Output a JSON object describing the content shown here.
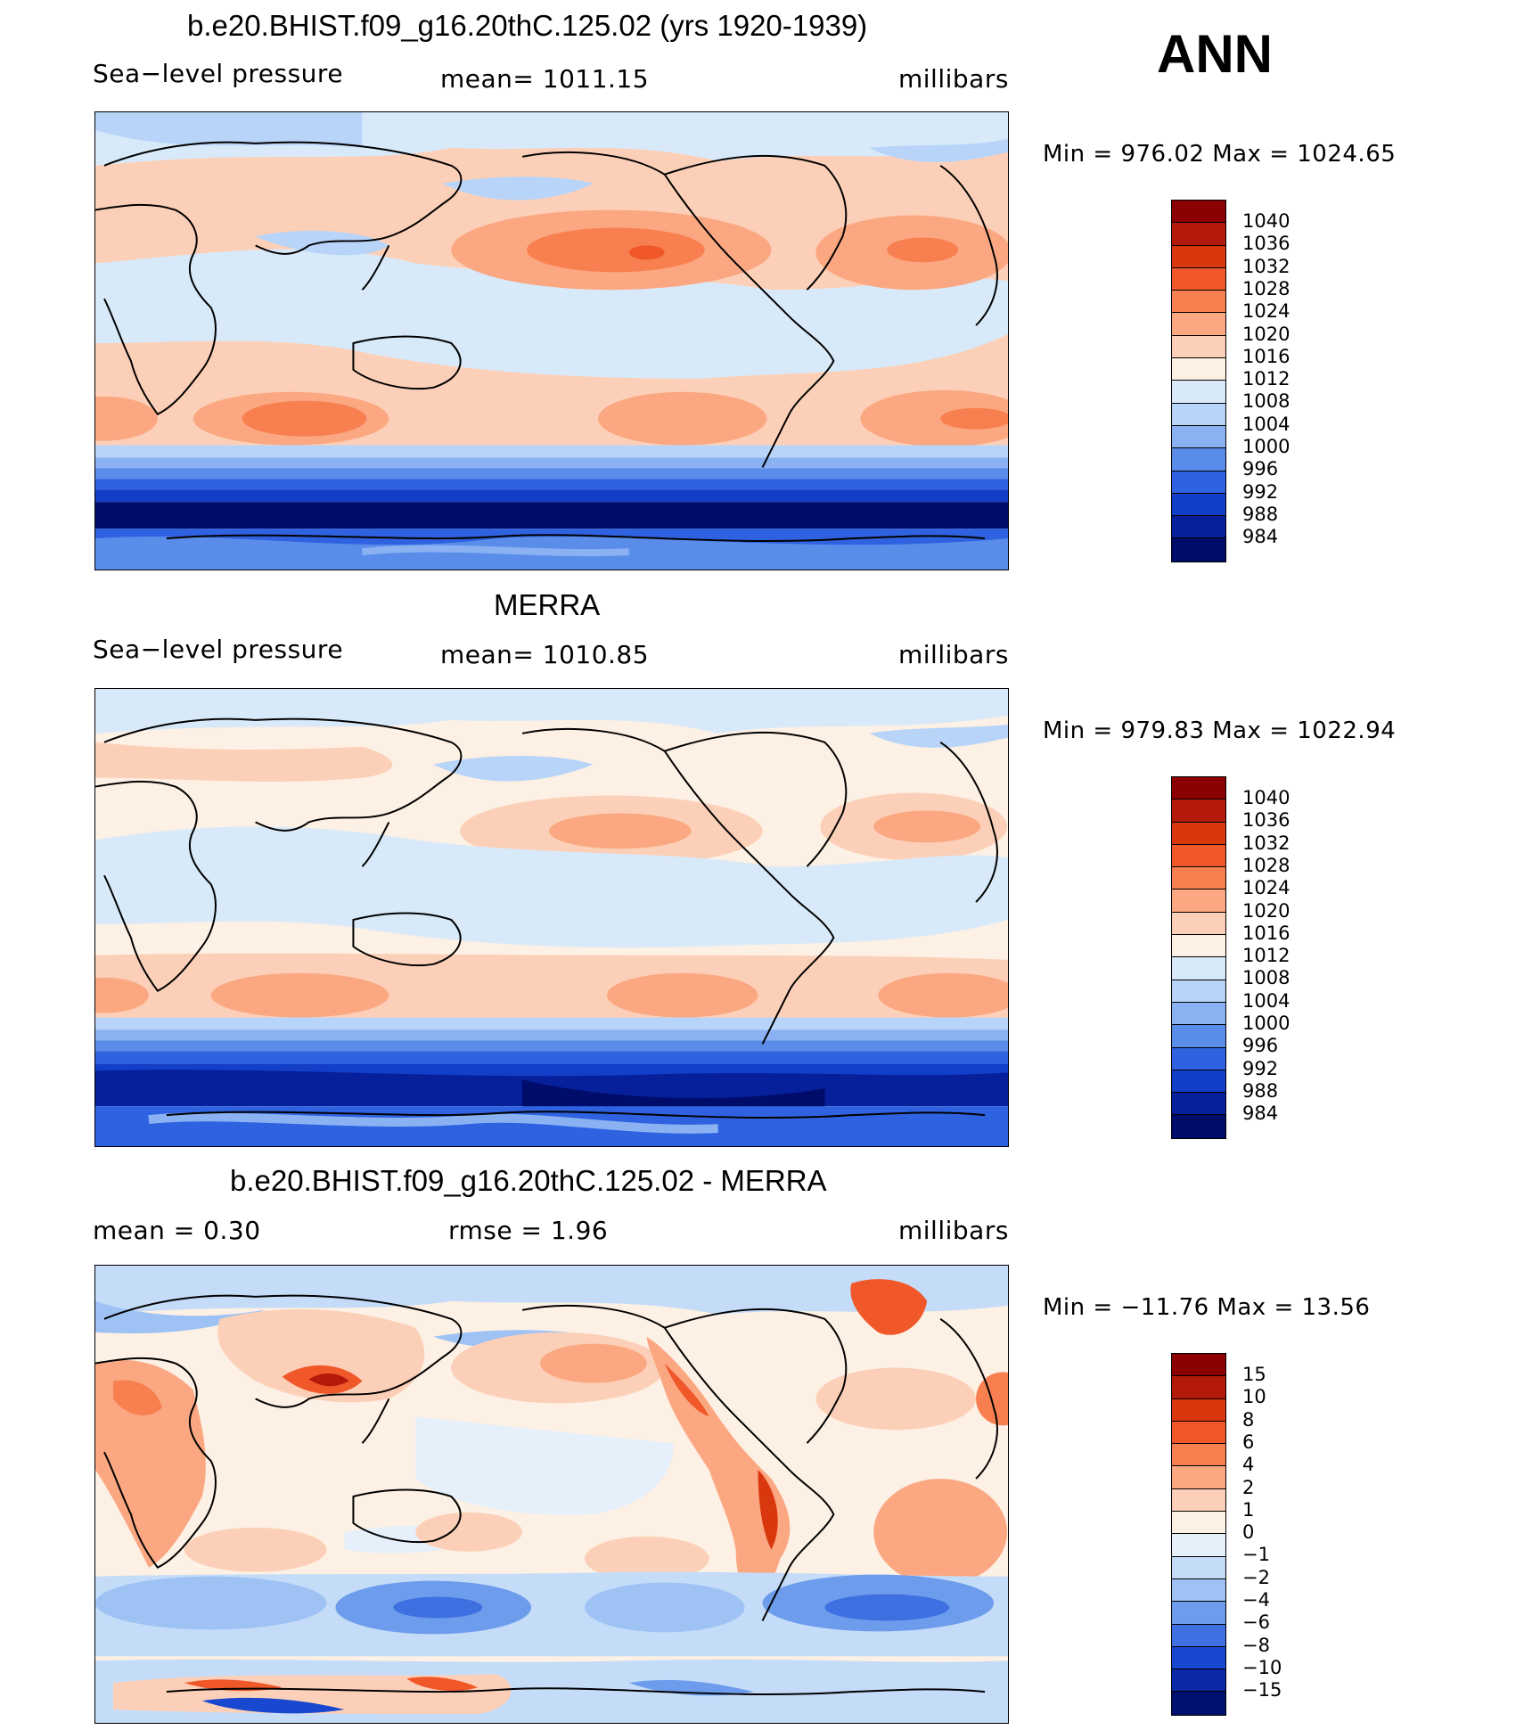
{
  "panels": [
    {
      "title": "b.e20.BHIST.f09_g16.20thC.125.02 (yrs 1920-1939)",
      "left_label": "Sea−level pressure",
      "center_label": "mean=  1011.15",
      "right_label": "millibars",
      "minmax": "Min  =  976.02  Max  =  1024.65",
      "levels": [
        "1040",
        "1036",
        "1032",
        "1028",
        "1024",
        "1020",
        "1016",
        "1012",
        "1008",
        "1004",
        "1000",
        "996",
        "992",
        "988",
        "984"
      ],
      "colors": [
        "#8b0000",
        "#b31a0a",
        "#d9380f",
        "#f0582a",
        "#f88050",
        "#fba882",
        "#fcd0b8",
        "#fdf0e4",
        "#d8eafa",
        "#b8d4f8",
        "#8ab2f2",
        "#5a8cea",
        "#2f62e0",
        "#123ec8",
        "#061f9a",
        "#000c6a"
      ]
    },
    {
      "title": "MERRA",
      "left_label": "Sea−level pressure",
      "center_label": "mean=  1010.85",
      "right_label": "millibars",
      "minmax": "Min  =  979.83  Max  =  1022.94",
      "levels": [
        "1040",
        "1036",
        "1032",
        "1028",
        "1024",
        "1020",
        "1016",
        "1012",
        "1008",
        "1004",
        "1000",
        "996",
        "992",
        "988",
        "984"
      ],
      "colors": [
        "#8b0000",
        "#b31a0a",
        "#d9380f",
        "#f0582a",
        "#f88050",
        "#fba882",
        "#fcd0b8",
        "#fdf0e4",
        "#d8eafa",
        "#b8d4f8",
        "#8ab2f2",
        "#5a8cea",
        "#2f62e0",
        "#123ec8",
        "#061f9a",
        "#000c6a"
      ]
    },
    {
      "title": "b.e20.BHIST.f09_g16.20thC.125.02 - MERRA",
      "left_label": "mean  =      0.30",
      "center_label": "rmse  =      1.96",
      "right_label": "millibars",
      "minmax": "Min  =  −11.76  Max  =    13.56",
      "levels": [
        "15",
        "10",
        "8",
        "6",
        "4",
        "2",
        "1",
        "0",
        "−1",
        "−2",
        "−4",
        "−6",
        "−8",
        "−10",
        "−15"
      ],
      "colors": [
        "#8b0000",
        "#b31a0a",
        "#d9380f",
        "#f0582a",
        "#f88050",
        "#fba882",
        "#fcd0b8",
        "#fdf0e4",
        "#e6f0fb",
        "#c4dcf8",
        "#9ec2f4",
        "#6e9cec",
        "#3e70e2",
        "#1848d0",
        "#0a28a8",
        "#00106e"
      ]
    }
  ],
  "season": "ANN"
}
